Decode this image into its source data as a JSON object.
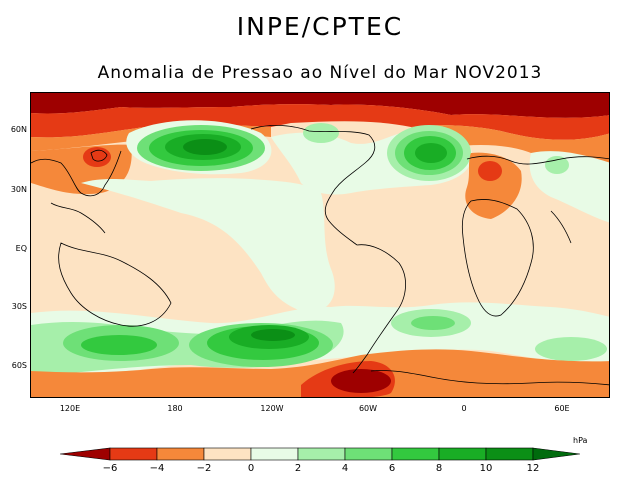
{
  "header": {
    "title": "INPE/CPTEC",
    "subtitle": "Anomalia de Pressao ao Nível do Mar NOV2013"
  },
  "map": {
    "lat_labels": [
      "60N",
      "30N",
      "EQ",
      "30S",
      "60S"
    ],
    "lon_labels": [
      "120E",
      "180",
      "120W",
      "60W",
      "0",
      "60E"
    ]
  },
  "colorbar": {
    "unit": "hPa",
    "ticks": [
      "−6",
      "−4",
      "−2",
      "0",
      "2",
      "4",
      "6",
      "8",
      "10",
      "12"
    ],
    "colors": {
      "lt_-6": "#9e0000",
      "-6_-4": "#e53a15",
      "-4_-2": "#f5883a",
      "-2_0": "#fde3c3",
      "0_2": "#e8fbe6",
      "2_4": "#a6efaa",
      "4_6": "#6ee077",
      "6_8": "#33c93f",
      "8_10": "#19ad25",
      "10_12": "#0b8f16",
      "gt_12": "#006b0d"
    }
  }
}
